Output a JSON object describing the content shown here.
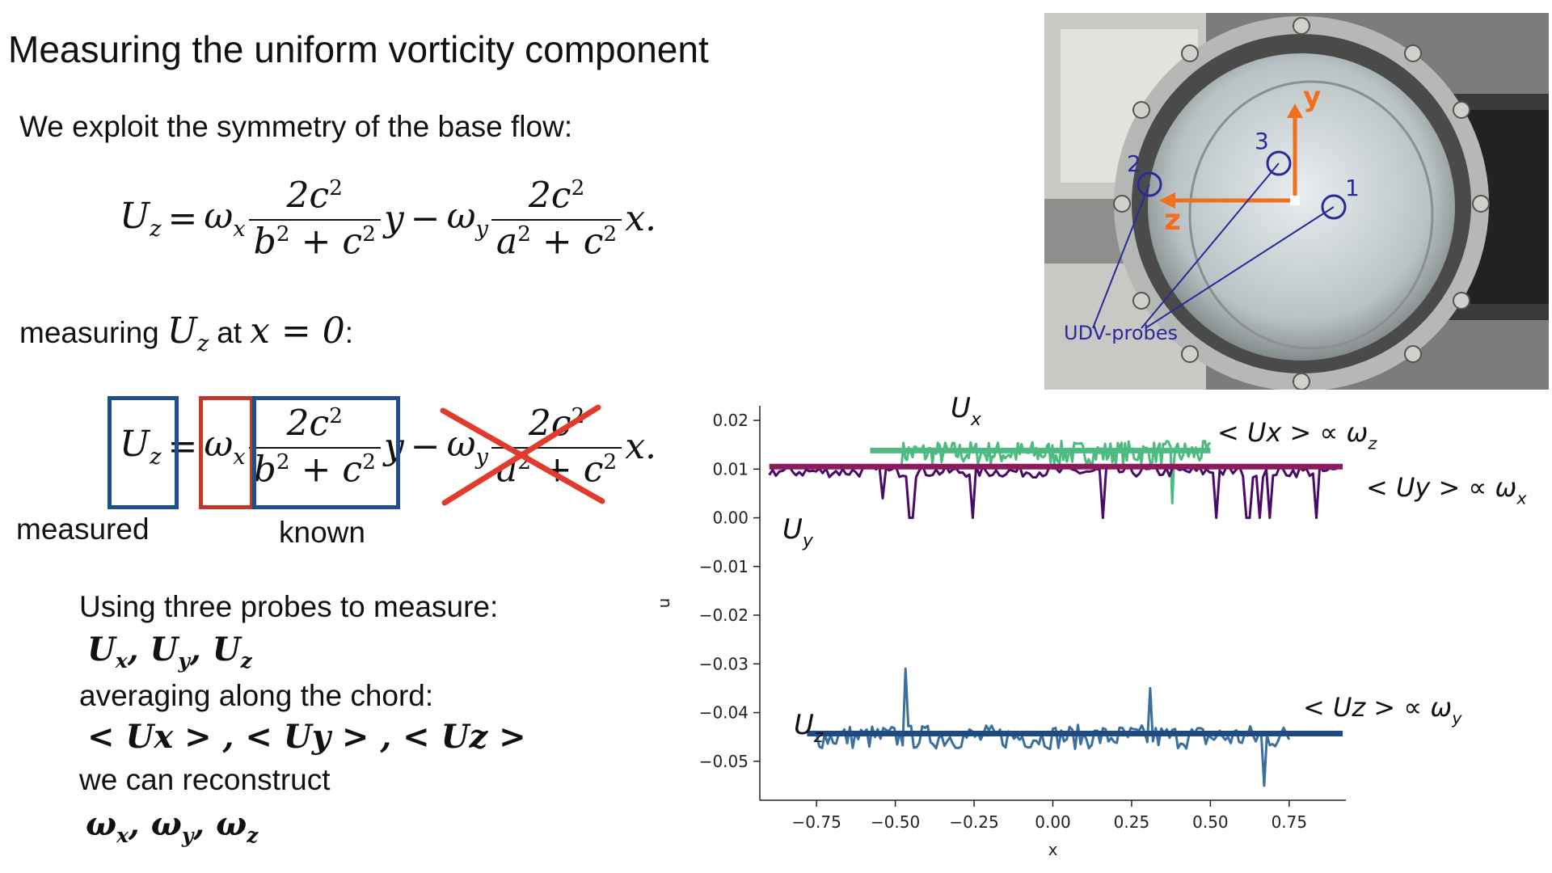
{
  "slide": {
    "title": "Measuring the uniform vorticity component",
    "intro": "We exploit the symmetry of the base flow:",
    "measuring_prefix": "measuring",
    "measuring_mid": "at",
    "measuring_cond": "x = 0",
    "measuring_suffix": ":",
    "label_measured": "measured",
    "label_known": "known",
    "probes_line": "Using three probes to measure:",
    "probes_math": "Ux, Uy, Uz",
    "averaging_line": "averaging along the chord:",
    "averages_math": "< Ux > , < Uy > , < Uz >",
    "reconstruct_line": "we can reconstruct",
    "omega_math": "ωx, ωy, ωz"
  },
  "equation": {
    "lhs": "U",
    "lhs_sub": "z",
    "eq": "=",
    "omega": "ω",
    "sub_x": "x",
    "sub_y": "y",
    "num": "2c",
    "num_sup": "2",
    "den1_a": "b",
    "den1_plus": " + c",
    "den2_a": "a",
    "var_y": "y",
    "minus": "−",
    "var_x": "x."
  },
  "photo": {
    "axis_y": "y",
    "axis_z": "z",
    "probe_1": "1",
    "probe_2": "2",
    "probe_3": "3",
    "probe_label": "UDV-probes",
    "accent_orange": "#f07020",
    "accent_blue": "#2a2a9a"
  },
  "colors": {
    "box_blue": "#1f4e8c",
    "box_red": "#c0392b",
    "cross_red": "#e23b2e",
    "ux_green": "#4dbb80",
    "uy_purple": "#4b0a6a",
    "uy_mean_magenta": "#8e1a5e",
    "uz_blue": "#3a6f9e",
    "uz_mean_navy": "#1e4a80"
  },
  "chart_data": {
    "type": "line",
    "xlabel": "x",
    "ylabel": "u",
    "xlim": [
      -0.93,
      0.93
    ],
    "ylim": [
      -0.058,
      0.023
    ],
    "xticks": [
      -0.75,
      -0.5,
      -0.25,
      0.0,
      0.25,
      0.5,
      0.75
    ],
    "xtick_labels": [
      "−0.75",
      "−0.50",
      "−0.25",
      "0.00",
      "0.25",
      "0.50",
      "0.75"
    ],
    "yticks": [
      0.02,
      0.01,
      0.0,
      -0.01,
      -0.02,
      -0.03,
      -0.04,
      -0.05
    ],
    "ytick_labels": [
      "0.02",
      "0.01",
      "0.00",
      "−0.01",
      "−0.02",
      "−0.03",
      "−0.04",
      "−0.05"
    ],
    "series": [
      {
        "name": "Ux",
        "x_range": [
          -0.48,
          0.5
        ],
        "mean": 0.0133,
        "noise": 0.0025,
        "spikes": [
          [
            0.38,
            0.003
          ]
        ]
      },
      {
        "name": "Uy",
        "x_range": [
          -0.9,
          0.9
        ],
        "mean": 0.0095,
        "noise": 0.0012,
        "spikes": [
          [
            -0.54,
            0.004
          ],
          [
            -0.45,
            0.0
          ],
          [
            -0.25,
            0.0
          ],
          [
            0.16,
            0.0
          ],
          [
            0.52,
            0.0
          ],
          [
            0.62,
            0.0
          ],
          [
            0.66,
            0.0
          ],
          [
            0.69,
            0.0
          ],
          [
            0.84,
            0.0
          ]
        ]
      },
      {
        "name": "Uz",
        "x_range": [
          -0.75,
          0.75
        ],
        "mean": -0.045,
        "noise": 0.0025,
        "spikes": [
          [
            -0.47,
            -0.031
          ],
          [
            0.31,
            -0.035
          ],
          [
            0.67,
            -0.055
          ]
        ]
      }
    ],
    "means": [
      {
        "series": "Ux",
        "value": 0.0138,
        "x_range": [
          -0.58,
          0.5
        ]
      },
      {
        "series": "Uy",
        "value": 0.0105,
        "x_range": [
          -0.9,
          0.92
        ]
      },
      {
        "series": "Uz",
        "value": -0.0443,
        "x_range": [
          -0.78,
          0.92
        ]
      }
    ],
    "annotations": {
      "ux_label": "U",
      "ux_sub": "x",
      "uy_label": "U",
      "uy_sub": "y",
      "uz_label": "U",
      "uz_sub": "z",
      "mean_ux": "< Ux > ∝ ω",
      "mean_ux_sub": "z",
      "mean_uy": "< Uy > ∝ ω",
      "mean_uy_sub": "x",
      "mean_uz": "< Uz > ∝ ω",
      "mean_uz_sub": "y"
    }
  }
}
